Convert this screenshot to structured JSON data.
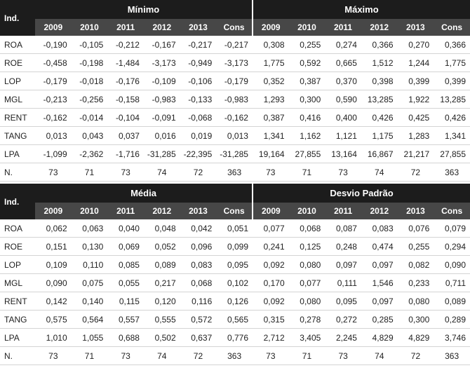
{
  "blocks": [
    {
      "ind": "Ind.",
      "groups": [
        "Mínimo",
        "Máximo"
      ],
      "years": [
        "2009",
        "2010",
        "2011",
        "2012",
        "2013",
        "Cons",
        "2009",
        "2010",
        "2011",
        "2012",
        "2013",
        "Cons"
      ],
      "rows": [
        {
          "label": "ROA",
          "values": [
            "-0,190",
            "-0,105",
            "-0,212",
            "-0,167",
            "-0,217",
            "-0,217",
            "0,308",
            "0,255",
            "0,274",
            "0,366",
            "0,270",
            "0,366"
          ]
        },
        {
          "label": "ROE",
          "values": [
            "-0,458",
            "-0,198",
            "-1,484",
            "-3,173",
            "-0,949",
            "-3,173",
            "1,775",
            "0,592",
            "0,665",
            "1,512",
            "1,244",
            "1,775"
          ]
        },
        {
          "label": "LOP",
          "values": [
            "-0,179",
            "-0,018",
            "-0,176",
            "-0,109",
            "-0,106",
            "-0,179",
            "0,352",
            "0,387",
            "0,370",
            "0,398",
            "0,399",
            "0,399"
          ]
        },
        {
          "label": "MGL",
          "values": [
            "-0,213",
            "-0,256",
            "-0,158",
            "-0,983",
            "-0,133",
            "-0,983",
            "1,293",
            "0,300",
            "0,590",
            "13,285",
            "1,922",
            "13,285"
          ]
        },
        {
          "label": "RENT",
          "values": [
            "-0,162",
            "-0,014",
            "-0,104",
            "-0,091",
            "-0,068",
            "-0,162",
            "0,387",
            "0,416",
            "0,400",
            "0,426",
            "0,425",
            "0,426"
          ]
        },
        {
          "label": "TANG",
          "values": [
            "0,013",
            "0,043",
            "0,037",
            "0,016",
            "0,019",
            "0,013",
            "1,341",
            "1,162",
            "1,121",
            "1,175",
            "1,283",
            "1,341"
          ]
        },
        {
          "label": "LPA",
          "values": [
            "-1,099",
            "-2,362",
            "-1,716",
            "-31,285",
            "-22,395",
            "-31,285",
            "19,164",
            "27,855",
            "13,164",
            "16,867",
            "21,217",
            "27,855"
          ]
        },
        {
          "label": "N.",
          "values": [
            "73",
            "71",
            "73",
            "74",
            "72",
            "363",
            "73",
            "71",
            "73",
            "74",
            "72",
            "363"
          ]
        }
      ]
    },
    {
      "ind": "Ind.",
      "groups": [
        "Média",
        "Desvio Padrão"
      ],
      "years": [
        "2009",
        "2010",
        "2011",
        "2012",
        "2013",
        "Cons",
        "2009",
        "2010",
        "2011",
        "2012",
        "2013",
        "Cons"
      ],
      "rows": [
        {
          "label": "ROA",
          "values": [
            "0,062",
            "0,063",
            "0,040",
            "0,048",
            "0,042",
            "0,051",
            "0,077",
            "0,068",
            "0,087",
            "0,083",
            "0,076",
            "0,079"
          ]
        },
        {
          "label": "ROE",
          "values": [
            "0,151",
            "0,130",
            "0,069",
            "0,052",
            "0,096",
            "0,099",
            "0,241",
            "0,125",
            "0,248",
            "0,474",
            "0,255",
            "0,294"
          ]
        },
        {
          "label": "LOP",
          "values": [
            "0,109",
            "0,110",
            "0,085",
            "0,089",
            "0,083",
            "0,095",
            "0,092",
            "0,080",
            "0,097",
            "0,097",
            "0,082",
            "0,090"
          ]
        },
        {
          "label": "MGL",
          "values": [
            "0,090",
            "0,075",
            "0,055",
            "0,217",
            "0,068",
            "0,102",
            "0,170",
            "0,077",
            "0,111",
            "1,546",
            "0,233",
            "0,711"
          ]
        },
        {
          "label": "RENT",
          "values": [
            "0,142",
            "0,140",
            "0,115",
            "0,120",
            "0,116",
            "0,126",
            "0,092",
            "0,080",
            "0,095",
            "0,097",
            "0,080",
            "0,089"
          ]
        },
        {
          "label": "TANG",
          "values": [
            "0,575",
            "0,564",
            "0,557",
            "0,555",
            "0,572",
            "0,565",
            "0,315",
            "0,278",
            "0,272",
            "0,285",
            "0,300",
            "0,289"
          ]
        },
        {
          "label": "LPA",
          "values": [
            "1,010",
            "1,055",
            "0,688",
            "0,502",
            "0,637",
            "0,776",
            "2,712",
            "3,405",
            "2,245",
            "4,829",
            "4,829",
            "3,746"
          ]
        },
        {
          "label": "N.",
          "values": [
            "73",
            "71",
            "73",
            "74",
            "72",
            "363",
            "73",
            "71",
            "73",
            "74",
            "72",
            "363"
          ]
        }
      ]
    }
  ]
}
